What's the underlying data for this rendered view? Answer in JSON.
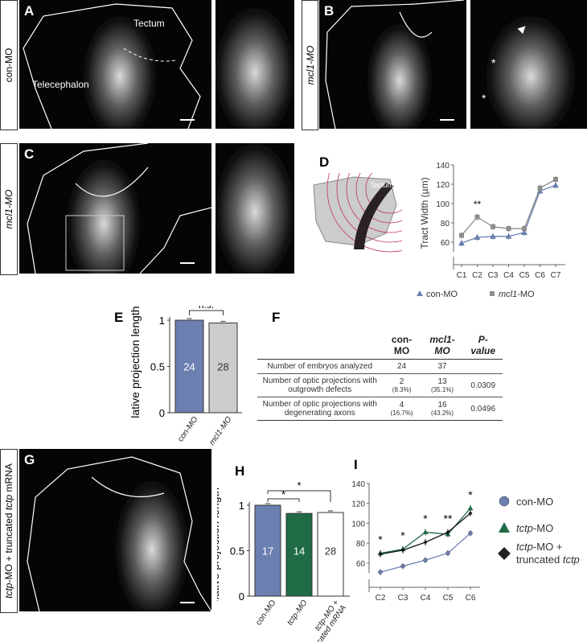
{
  "panels": {
    "A": "A",
    "B": "B",
    "C": "C",
    "D": "D",
    "E": "E",
    "F": "F",
    "G": "G",
    "H": "H",
    "I": "I"
  },
  "strips": {
    "A": "con-MO",
    "B": "mcl1-MO",
    "C": "mcl1-MO",
    "G_prefix": "tctp",
    "G_rest": "-MO + truncated ",
    "G_italic2": "tctp",
    "G_end": " mRNA"
  },
  "image_labels": {
    "tectum": "Tectum",
    "telencephalon": "Telecephalon",
    "star": "*",
    "schematic_tectum": "Tectum"
  },
  "chart_data": [
    {
      "id": "D",
      "type": "line",
      "ylabel": "Tract Width (µm)",
      "ylim": [
        50,
        140
      ],
      "yticks": [
        60,
        80,
        100,
        120,
        140
      ],
      "categories": [
        "C1",
        "C2",
        "C3",
        "C4",
        "C5",
        "C6",
        "C7"
      ],
      "series": [
        {
          "name": "con-MO",
          "color": "#6b7fb0",
          "marker": "triangle",
          "values": [
            59,
            65,
            66,
            66,
            70,
            113,
            119
          ]
        },
        {
          "name": "mcl1-MO",
          "color": "#8c8c8c",
          "marker": "square",
          "values": [
            67,
            86,
            76,
            74,
            74,
            116,
            125
          ]
        }
      ],
      "annotations": [
        {
          "category": "C2",
          "text": "**"
        }
      ],
      "legend": {
        "con": "con-MO",
        "mcl_it": "mcl1",
        "mcl_rest": "-MO"
      }
    },
    {
      "id": "E",
      "type": "bar",
      "ylabel": "Relative projection lengths",
      "ylim": [
        0,
        1
      ],
      "yticks": [
        "0",
        "0.5",
        "1"
      ],
      "categories": [
        "con-MO",
        "mcl1-MO"
      ],
      "values": [
        1.0,
        0.97
      ],
      "n": [
        "24",
        "28"
      ],
      "colors": [
        "#6b7fb0",
        "#cccccc"
      ],
      "annotation": "n.s."
    },
    {
      "id": "H",
      "type": "bar",
      "ylabel": "Relative projection length",
      "ylim": [
        0,
        1
      ],
      "yticks": [
        "0",
        "0.5",
        "1"
      ],
      "categories": [
        "con-MO",
        "tctp-MO",
        "tctp-MO + truncated mRNA"
      ],
      "values": [
        1.0,
        0.91,
        0.92
      ],
      "n": [
        "17",
        "14",
        "28"
      ],
      "colors": [
        "#6b7fb0",
        "#1f6b46",
        "#ffffff"
      ],
      "annotations": [
        "*",
        "*"
      ]
    },
    {
      "id": "I",
      "type": "line",
      "ylim": [
        45,
        140
      ],
      "yticks": [
        60,
        80,
        100,
        120,
        140
      ],
      "categories": [
        "C2",
        "C3",
        "C4",
        "C5",
        "C6"
      ],
      "series": [
        {
          "name": "con-MO",
          "color": "#6b7fb0",
          "values": [
            51,
            57,
            63,
            70,
            90
          ]
        },
        {
          "name": "tctp-MO",
          "color": "#1f6b46",
          "values": [
            70,
            74,
            91,
            89,
            115
          ]
        },
        {
          "name": "tctp-MO + truncated tctp",
          "color": "#111111",
          "values": [
            69,
            73,
            81,
            91,
            110
          ]
        }
      ],
      "annotations": [
        "*",
        "*",
        "*",
        "**",
        "*"
      ],
      "legend": {
        "con": "con-MO",
        "tctp_it": "tctp",
        "tctp_rest": "-MO",
        "trunc_line1": "-MO +",
        "trunc_line2": "truncated ",
        "trunc_it": "tctp"
      }
    }
  ],
  "table": {
    "headers": [
      "",
      "con-MO",
      "mcl1-MO",
      "P-value"
    ],
    "rows": [
      {
        "label": "Number of embryos analyzed",
        "con": "24",
        "con_pct": "",
        "mcl": "37",
        "mcl_pct": "",
        "p": ""
      },
      {
        "label": "Number of optic projections with outgrowth defects",
        "con": "2",
        "con_pct": "(8.3%)",
        "mcl": "13",
        "mcl_pct": "(35.1%)",
        "p": "0.0309"
      },
      {
        "label": "Number of optic projections with degenerating axons",
        "con": "4",
        "con_pct": "(16.7%)",
        "mcl": "16",
        "mcl_pct": "(43.2%)",
        "p": "0.0496"
      }
    ]
  }
}
